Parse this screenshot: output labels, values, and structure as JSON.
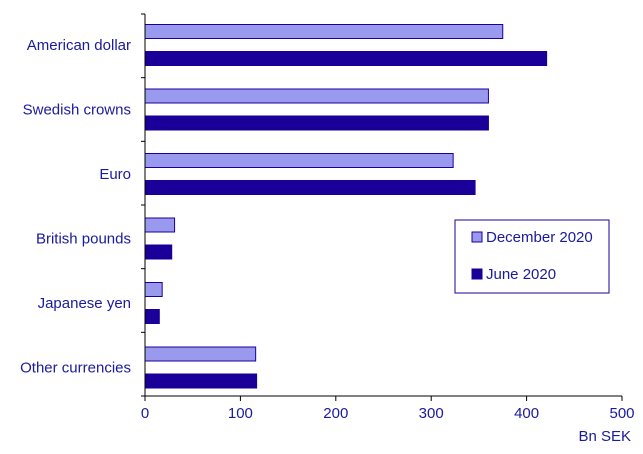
{
  "chart_data": {
    "type": "bar",
    "orientation": "horizontal",
    "categories": [
      "American dollar",
      "Swedish crowns",
      "Euro",
      "British pounds",
      "Japanese yen",
      "Other currencies"
    ],
    "series": [
      {
        "name": "December 2020",
        "values": [
          375,
          360,
          323,
          31,
          18,
          116
        ],
        "color": "#9999ee"
      },
      {
        "name": "June 2020",
        "values": [
          421,
          360,
          346,
          28,
          15,
          117
        ],
        "color": "#1a0099"
      }
    ],
    "xlim": [
      0,
      500
    ],
    "xticks": [
      0,
      100,
      200,
      300,
      400,
      500
    ],
    "xlabel": "Bn SEK",
    "legend_position": "right",
    "grid": false
  }
}
